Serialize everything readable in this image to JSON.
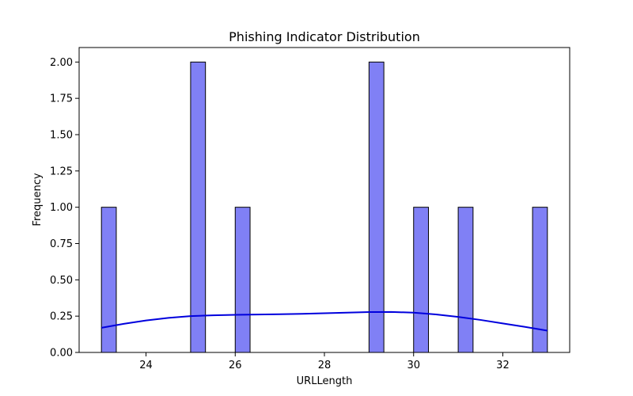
{
  "chart_data": {
    "type": "bar",
    "title": "Phishing Indicator Distribution",
    "xlabel": "URLLength",
    "ylabel": "Frequency",
    "xlim": [
      22.5,
      33.5
    ],
    "ylim": [
      0,
      2.1
    ],
    "x_ticks": [
      "24",
      "26",
      "28",
      "30",
      "32"
    ],
    "y_ticks": [
      "0.00",
      "0.25",
      "0.50",
      "0.75",
      "1.00",
      "1.25",
      "1.50",
      "1.75",
      "2.00"
    ],
    "bars": [
      {
        "x0": 23.0,
        "x1": 23.333,
        "count": 1
      },
      {
        "x0": 25.0,
        "x1": 25.333,
        "count": 2
      },
      {
        "x0": 26.0,
        "x1": 26.333,
        "count": 1
      },
      {
        "x0": 29.0,
        "x1": 29.333,
        "count": 2
      },
      {
        "x0": 30.0,
        "x1": 30.333,
        "count": 1
      },
      {
        "x0": 31.0,
        "x1": 31.333,
        "count": 1
      },
      {
        "x0": 32.667,
        "x1": 33.0,
        "count": 1
      }
    ],
    "kde": {
      "x": [
        23.0,
        23.5,
        24.0,
        24.5,
        25.0,
        25.5,
        26.0,
        26.5,
        27.0,
        27.5,
        28.0,
        28.5,
        29.0,
        29.5,
        30.0,
        30.5,
        31.0,
        31.5,
        32.0,
        32.5,
        33.0
      ],
      "y": [
        0.17,
        0.197,
        0.22,
        0.238,
        0.25,
        0.256,
        0.259,
        0.261,
        0.263,
        0.266,
        0.27,
        0.274,
        0.278,
        0.279,
        0.274,
        0.262,
        0.245,
        0.224,
        0.2,
        0.176,
        0.15
      ]
    },
    "grid": false,
    "colors": {
      "bar_fill": "#8080f5",
      "bar_edge": "#000000",
      "kde_line": "#0000dd"
    }
  }
}
